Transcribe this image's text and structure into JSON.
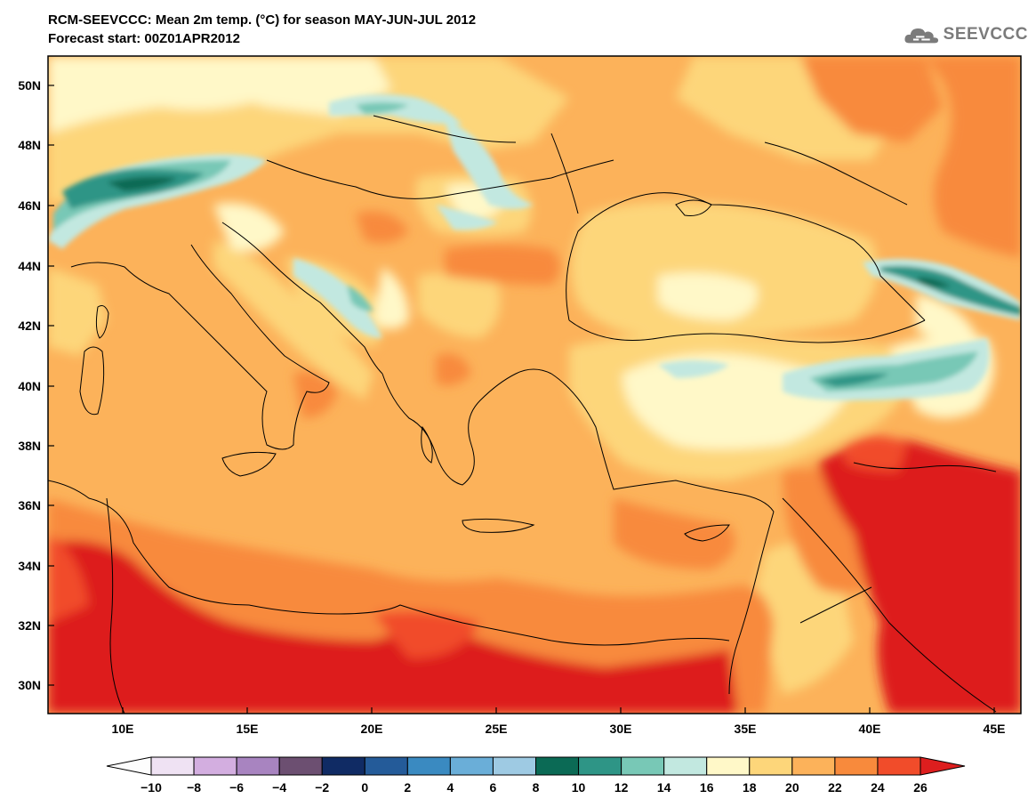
{
  "header": {
    "title_line1": "RCM-SEEVCCC: Mean 2m temp. (°C) for season MAY-JUN-JUL 2012",
    "title_line2": "Forecast start: 00Z01APR2012"
  },
  "logo": {
    "text": "SEEVCCC",
    "icon": "cloud-logo-icon"
  },
  "map": {
    "lon_ticks": [
      "10E",
      "15E",
      "20E",
      "25E",
      "30E",
      "35E",
      "40E",
      "45E"
    ],
    "lat_ticks": [
      "50N",
      "48N",
      "46N",
      "44N",
      "42N",
      "40N",
      "38N",
      "36N",
      "34N",
      "32N",
      "30N"
    ]
  },
  "colorbar": {
    "labels": [
      "−10",
      "−8",
      "−6",
      "−4",
      "−2",
      "0",
      "2",
      "4",
      "6",
      "8",
      "10",
      "12",
      "14",
      "16",
      "18",
      "20",
      "22",
      "24",
      "26"
    ],
    "colors": [
      "#fdfdfd",
      "#efe2f3",
      "#d3aee0",
      "#a884c0",
      "#6c4f71",
      "#102b64",
      "#245b99",
      "#3a8ac1",
      "#6aaed8",
      "#9ecae3",
      "#0b6a55",
      "#2e9586",
      "#78c8b6",
      "#c2e8e0",
      "#fff8c8",
      "#fdd67a",
      "#fcb25a",
      "#f88a3c",
      "#f14c2a",
      "#dd1e1e"
    ]
  }
}
